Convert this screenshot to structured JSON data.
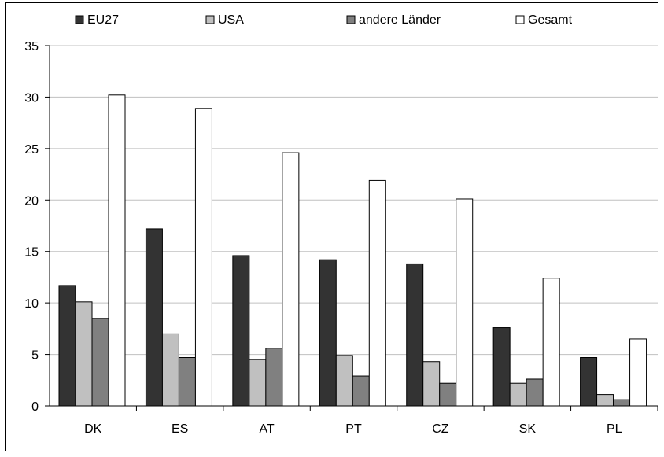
{
  "chart_data": {
    "type": "bar",
    "categories": [
      "DK",
      "ES",
      "AT",
      "PT",
      "CZ",
      "SK",
      "PL"
    ],
    "series": [
      {
        "name": "EU27",
        "color": "#333333",
        "values": [
          11.7,
          17.2,
          14.6,
          14.2,
          13.8,
          7.6,
          4.7
        ]
      },
      {
        "name": "USA",
        "color": "#c0c0c0",
        "values": [
          10.1,
          7.0,
          4.5,
          4.9,
          4.3,
          2.2,
          1.1
        ]
      },
      {
        "name": "andere Länder",
        "color": "#808080",
        "values": [
          8.5,
          4.7,
          5.6,
          2.9,
          2.2,
          2.6,
          0.6
        ]
      },
      {
        "name": "Gesamt",
        "color": "#ffffff",
        "values": [
          30.2,
          28.9,
          24.6,
          21.9,
          20.1,
          12.4,
          6.5
        ]
      }
    ],
    "y_ticks": [
      "0",
      "5",
      "10",
      "15",
      "20",
      "25",
      "30",
      "35"
    ],
    "ylim": [
      0,
      35
    ],
    "grid": true,
    "legend_position": "top",
    "title": "",
    "xlabel": "",
    "ylabel": ""
  }
}
